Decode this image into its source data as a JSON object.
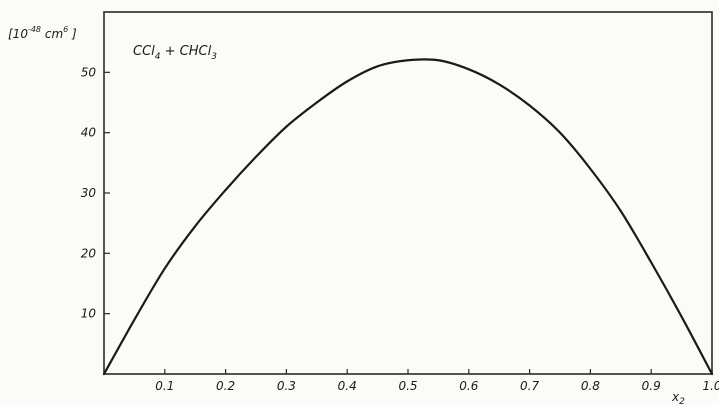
{
  "chart_data": {
    "type": "line",
    "title": "",
    "annotation": {
      "prefix": "CCl",
      "sub1": "4",
      "middle": " + CHCl",
      "sub2": "3"
    },
    "ylabel": {
      "prefix": "[10",
      "exponent": "-48",
      "unit": " cm",
      "unit_exp": "6",
      "suffix": " ]"
    },
    "xlabel": {
      "base": "x",
      "sub": "2"
    },
    "xlim": [
      0.0,
      1.0
    ],
    "ylim": [
      0,
      60
    ],
    "x_ticks": [
      0.1,
      0.2,
      0.3,
      0.4,
      0.5,
      0.6,
      0.7,
      0.8,
      0.9,
      1.0
    ],
    "x_tick_labels": [
      "0.1",
      "0.2",
      "0.3",
      "0.4",
      "0.5",
      "0.6",
      "0.7",
      "0.8",
      "0.9",
      "1.0"
    ],
    "y_ticks": [
      10,
      20,
      30,
      40,
      50
    ],
    "y_tick_labels": [
      "10",
      "20",
      "30",
      "40",
      "50"
    ],
    "grid": false,
    "legend": "none",
    "series": [
      {
        "x": [
          0.0,
          0.05,
          0.1,
          0.15,
          0.2,
          0.25,
          0.3,
          0.35,
          0.4,
          0.45,
          0.5,
          0.55,
          0.6,
          0.65,
          0.7,
          0.75,
          0.8,
          0.85,
          0.9,
          0.95,
          1.0
        ],
        "values": [
          0,
          9,
          17.5,
          24.5,
          30.5,
          36,
          41,
          45,
          48.5,
          51,
          52,
          52,
          50.5,
          48,
          44.5,
          40,
          34,
          27,
          18.5,
          9.5,
          0
        ]
      }
    ],
    "colors": {
      "line": "#1a1a1a",
      "axis": "#2a2a2a"
    }
  }
}
